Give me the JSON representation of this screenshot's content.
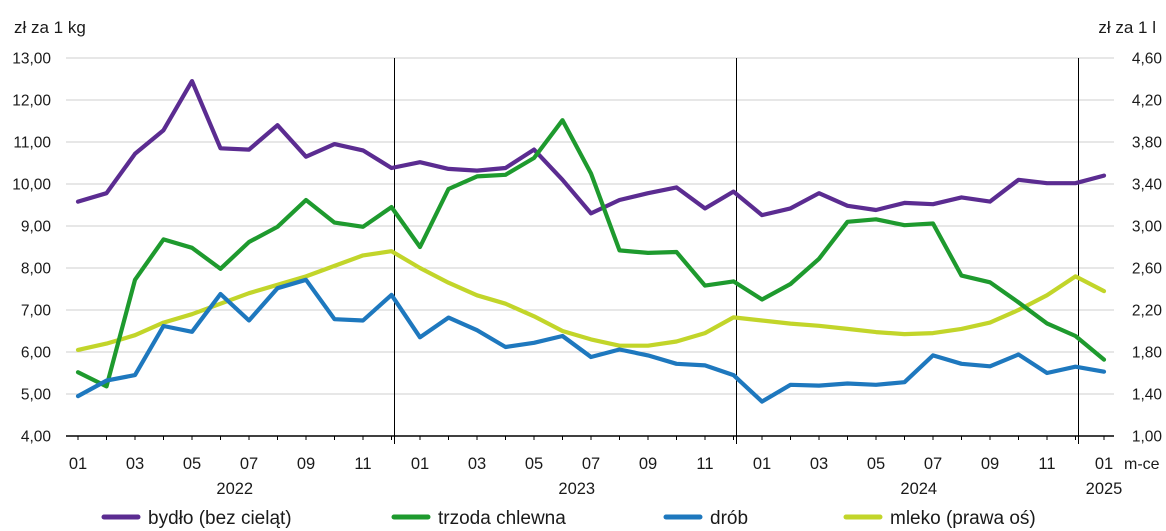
{
  "chart_data": {
    "type": "line",
    "y_left_unit": "zł za 1 kg",
    "y_right_unit": "zł za 1 l",
    "x_unit": "m-ce",
    "ylim_left": [
      4,
      13
    ],
    "ylim_right": [
      1.0,
      4.6
    ],
    "y_ticks_left": [
      "4,00",
      "5,00",
      "6,00",
      "7,00",
      "8,00",
      "9,00",
      "10,00",
      "11,00",
      "12,00",
      "13,00"
    ],
    "y_ticks_right": [
      "1,00",
      "1,40",
      "1,80",
      "2,20",
      "2,60",
      "3,00",
      "3,40",
      "3,80",
      "4,20",
      "4,60"
    ],
    "x_months": [
      "01",
      "02",
      "03",
      "04",
      "05",
      "06",
      "07",
      "08",
      "09",
      "10",
      "11",
      "12",
      "01",
      "02",
      "03",
      "04",
      "05",
      "06",
      "07",
      "08",
      "09",
      "10",
      "11",
      "12",
      "01",
      "02",
      "03",
      "04",
      "05",
      "06",
      "07",
      "08",
      "09",
      "10",
      "11",
      "12",
      "01"
    ],
    "x_tick_labels": [
      "01",
      "03",
      "05",
      "07",
      "09",
      "11",
      "01",
      "03",
      "05",
      "07",
      "09",
      "11",
      "01",
      "03",
      "05",
      "07",
      "09",
      "11",
      "01"
    ],
    "years": [
      "2022",
      "2023",
      "2024",
      "2025"
    ],
    "grid": "horizontal",
    "legend_position": "bottom",
    "series": [
      {
        "name": "bydło (bez cieląt)",
        "color": "#5b2c91",
        "axis": "left",
        "values": [
          9.58,
          9.78,
          10.72,
          11.28,
          12.45,
          10.85,
          10.82,
          11.4,
          10.65,
          10.95,
          10.8,
          10.38,
          10.52,
          10.36,
          10.32,
          10.38,
          10.82,
          10.1,
          9.3,
          9.62,
          9.78,
          9.92,
          9.42,
          9.82,
          9.26,
          9.42,
          9.78,
          9.48,
          9.38,
          9.55,
          9.52,
          9.68,
          9.58,
          10.1,
          10.02,
          10.02,
          10.2
        ]
      },
      {
        "name": "trzoda chlewna",
        "color": "#1e9a2e",
        "axis": "left",
        "values": [
          5.52,
          5.18,
          7.72,
          8.68,
          8.48,
          7.98,
          8.62,
          8.98,
          9.62,
          9.08,
          8.98,
          9.45,
          8.5,
          9.88,
          10.18,
          10.22,
          10.62,
          11.52,
          10.25,
          8.42,
          8.36,
          8.38,
          7.58,
          7.68,
          7.25,
          7.62,
          8.22,
          9.1,
          9.16,
          9.02,
          9.06,
          7.82,
          7.66,
          7.18,
          6.68,
          6.38,
          5.82
        ]
      },
      {
        "name": "drób",
        "color": "#1e78be",
        "axis": "left",
        "values": [
          4.95,
          5.32,
          5.45,
          6.62,
          6.48,
          7.38,
          6.75,
          7.52,
          7.72,
          6.78,
          6.75,
          7.36,
          6.35,
          6.82,
          6.52,
          6.12,
          6.22,
          6.38,
          5.88,
          6.06,
          5.92,
          5.72,
          5.68,
          5.45,
          4.82,
          5.22,
          5.2,
          5.25,
          5.22,
          5.28,
          5.92,
          5.72,
          5.66,
          5.94,
          5.5,
          5.65,
          5.53
        ]
      },
      {
        "name": "mleko (prawa oś)",
        "color": "#c2d52a",
        "axis": "right",
        "values": [
          1.82,
          1.88,
          1.96,
          2.08,
          2.16,
          2.26,
          2.36,
          2.44,
          2.52,
          2.62,
          2.72,
          2.76,
          2.6,
          2.46,
          2.34,
          2.26,
          2.14,
          2.0,
          1.92,
          1.86,
          1.86,
          1.9,
          1.98,
          2.13,
          2.1,
          2.07,
          2.05,
          2.02,
          1.99,
          1.97,
          1.98,
          2.02,
          2.08,
          2.2,
          2.34,
          2.52,
          2.38
        ]
      }
    ]
  }
}
